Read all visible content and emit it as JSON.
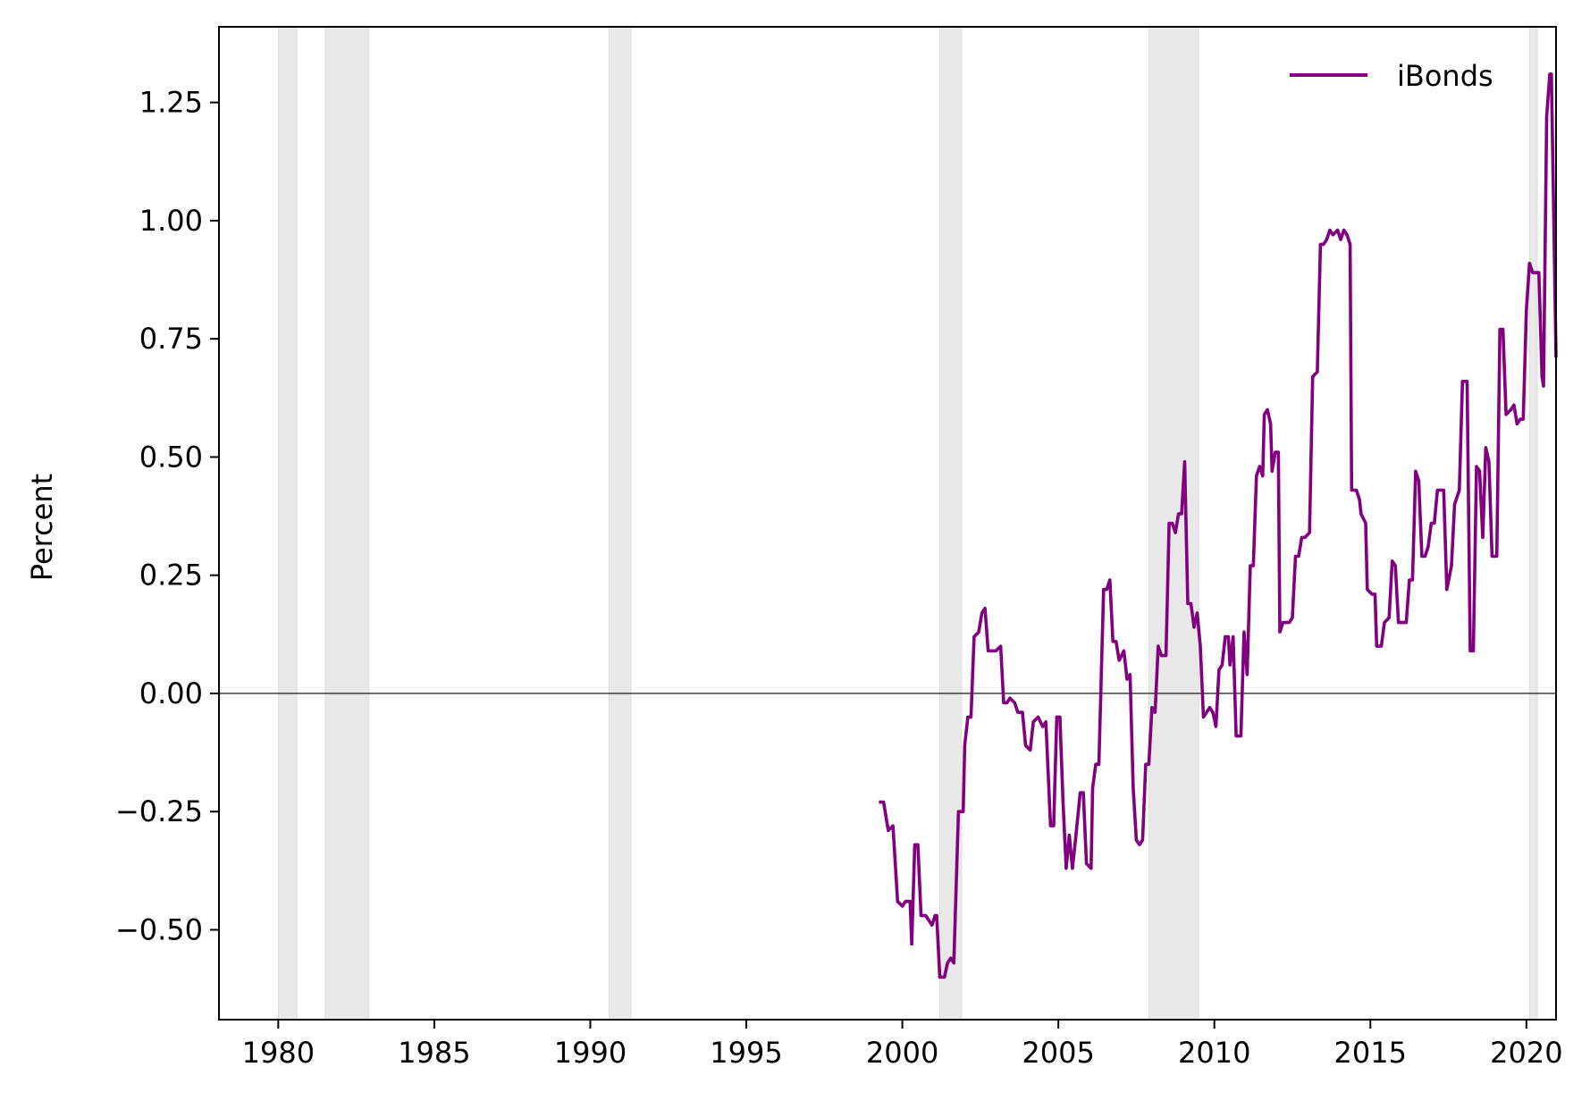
{
  "chart_data": {
    "type": "line",
    "title": "",
    "xlabel": "",
    "ylabel": "Percent",
    "xlim": [
      1978.1,
      2020.95
    ],
    "ylim": [
      -0.69,
      1.41
    ],
    "x_ticks": [
      1980,
      1985,
      1990,
      1995,
      2000,
      2005,
      2010,
      2015,
      2020
    ],
    "y_ticks": [
      {
        "value": -0.5,
        "label": "−0.50"
      },
      {
        "value": -0.25,
        "label": "−0.25"
      },
      {
        "value": 0.0,
        "label": "0.00"
      },
      {
        "value": 0.25,
        "label": "0.25"
      },
      {
        "value": 0.5,
        "label": "0.50"
      },
      {
        "value": 0.75,
        "label": "0.75"
      },
      {
        "value": 1.0,
        "label": "1.00"
      },
      {
        "value": 1.25,
        "label": "1.25"
      }
    ],
    "zero_line": true,
    "grid": false,
    "legend": {
      "position": "top-right"
    },
    "recession_shading": [
      [
        1980.0,
        1980.6
      ],
      [
        1981.5,
        1982.9
      ],
      [
        1990.6,
        1991.3
      ],
      [
        2001.2,
        2001.9
      ],
      [
        2007.9,
        2009.5
      ],
      [
        2020.1,
        2020.35
      ]
    ],
    "series": [
      {
        "name": "iBonds",
        "color": "#800080",
        "points": [
          [
            1999.25,
            -0.23
          ],
          [
            1999.4,
            -0.23
          ],
          [
            1999.55,
            -0.29
          ],
          [
            1999.7,
            -0.28
          ],
          [
            1999.85,
            -0.44
          ],
          [
            2000.0,
            -0.45
          ],
          [
            2000.1,
            -0.44
          ],
          [
            2000.25,
            -0.44
          ],
          [
            2000.3,
            -0.53
          ],
          [
            2000.4,
            -0.32
          ],
          [
            2000.5,
            -0.32
          ],
          [
            2000.6,
            -0.47
          ],
          [
            2000.75,
            -0.47
          ],
          [
            2000.85,
            -0.48
          ],
          [
            2000.95,
            -0.49
          ],
          [
            2001.05,
            -0.47
          ],
          [
            2001.1,
            -0.47
          ],
          [
            2001.2,
            -0.6
          ],
          [
            2001.35,
            -0.6
          ],
          [
            2001.45,
            -0.57
          ],
          [
            2001.55,
            -0.56
          ],
          [
            2001.65,
            -0.57
          ],
          [
            2001.8,
            -0.25
          ],
          [
            2001.95,
            -0.25
          ],
          [
            2002.0,
            -0.11
          ],
          [
            2002.1,
            -0.05
          ],
          [
            2002.2,
            -0.05
          ],
          [
            2002.3,
            0.12
          ],
          [
            2002.45,
            0.13
          ],
          [
            2002.55,
            0.17
          ],
          [
            2002.65,
            0.18
          ],
          [
            2002.75,
            0.09
          ],
          [
            2002.9,
            0.09
          ],
          [
            2003.0,
            0.09
          ],
          [
            2003.15,
            0.1
          ],
          [
            2003.25,
            -0.02
          ],
          [
            2003.35,
            -0.02
          ],
          [
            2003.45,
            -0.01
          ],
          [
            2003.6,
            -0.02
          ],
          [
            2003.7,
            -0.04
          ],
          [
            2003.85,
            -0.04
          ],
          [
            2003.95,
            -0.11
          ],
          [
            2004.1,
            -0.12
          ],
          [
            2004.2,
            -0.06
          ],
          [
            2004.35,
            -0.05
          ],
          [
            2004.5,
            -0.07
          ],
          [
            2004.6,
            -0.06
          ],
          [
            2004.75,
            -0.28
          ],
          [
            2004.85,
            -0.28
          ],
          [
            2004.95,
            -0.05
          ],
          [
            2005.05,
            -0.05
          ],
          [
            2005.15,
            -0.23
          ],
          [
            2005.25,
            -0.37
          ],
          [
            2005.35,
            -0.3
          ],
          [
            2005.45,
            -0.37
          ],
          [
            2005.55,
            -0.31
          ],
          [
            2005.7,
            -0.21
          ],
          [
            2005.8,
            -0.21
          ],
          [
            2005.9,
            -0.36
          ],
          [
            2006.05,
            -0.37
          ],
          [
            2006.1,
            -0.2
          ],
          [
            2006.2,
            -0.15
          ],
          [
            2006.3,
            -0.15
          ],
          [
            2006.45,
            0.22
          ],
          [
            2006.55,
            0.22
          ],
          [
            2006.65,
            0.24
          ],
          [
            2006.75,
            0.11
          ],
          [
            2006.85,
            0.11
          ],
          [
            2006.95,
            0.07
          ],
          [
            2007.1,
            0.09
          ],
          [
            2007.2,
            0.03
          ],
          [
            2007.3,
            0.04
          ],
          [
            2007.4,
            -0.2
          ],
          [
            2007.5,
            -0.31
          ],
          [
            2007.6,
            -0.32
          ],
          [
            2007.7,
            -0.31
          ],
          [
            2007.8,
            -0.15
          ],
          [
            2007.9,
            -0.15
          ],
          [
            2008.0,
            -0.03
          ],
          [
            2008.1,
            -0.04
          ],
          [
            2008.2,
            0.1
          ],
          [
            2008.3,
            0.08
          ],
          [
            2008.45,
            0.08
          ],
          [
            2008.55,
            0.36
          ],
          [
            2008.65,
            0.36
          ],
          [
            2008.75,
            0.34
          ],
          [
            2008.85,
            0.38
          ],
          [
            2008.95,
            0.38
          ],
          [
            2009.05,
            0.49
          ],
          [
            2009.15,
            0.19
          ],
          [
            2009.25,
            0.19
          ],
          [
            2009.35,
            0.14
          ],
          [
            2009.45,
            0.17
          ],
          [
            2009.55,
            0.1
          ],
          [
            2009.65,
            -0.05
          ],
          [
            2009.75,
            -0.04
          ],
          [
            2009.85,
            -0.03
          ],
          [
            2009.95,
            -0.04
          ],
          [
            2010.05,
            -0.07
          ],
          [
            2010.15,
            0.05
          ],
          [
            2010.25,
            0.06
          ],
          [
            2010.35,
            0.12
          ],
          [
            2010.45,
            0.12
          ],
          [
            2010.5,
            0.06
          ],
          [
            2010.6,
            0.12
          ],
          [
            2010.7,
            -0.09
          ],
          [
            2010.85,
            -0.09
          ],
          [
            2010.95,
            0.13
          ],
          [
            2011.05,
            0.04
          ],
          [
            2011.15,
            0.27
          ],
          [
            2011.25,
            0.27
          ],
          [
            2011.35,
            0.46
          ],
          [
            2011.45,
            0.48
          ],
          [
            2011.55,
            0.46
          ],
          [
            2011.6,
            0.59
          ],
          [
            2011.7,
            0.6
          ],
          [
            2011.8,
            0.57
          ],
          [
            2011.85,
            0.47
          ],
          [
            2011.95,
            0.51
          ],
          [
            2012.05,
            0.51
          ],
          [
            2012.1,
            0.13
          ],
          [
            2012.2,
            0.15
          ],
          [
            2012.3,
            0.15
          ],
          [
            2012.4,
            0.15
          ],
          [
            2012.5,
            0.16
          ],
          [
            2012.6,
            0.29
          ],
          [
            2012.7,
            0.29
          ],
          [
            2012.8,
            0.33
          ],
          [
            2012.9,
            0.33
          ],
          [
            2013.05,
            0.34
          ],
          [
            2013.15,
            0.67
          ],
          [
            2013.3,
            0.68
          ],
          [
            2013.4,
            0.95
          ],
          [
            2013.5,
            0.95
          ],
          [
            2013.6,
            0.96
          ],
          [
            2013.7,
            0.98
          ],
          [
            2013.8,
            0.97
          ],
          [
            2013.95,
            0.98
          ],
          [
            2014.05,
            0.96
          ],
          [
            2014.15,
            0.98
          ],
          [
            2014.25,
            0.97
          ],
          [
            2014.35,
            0.95
          ],
          [
            2014.4,
            0.43
          ],
          [
            2014.55,
            0.43
          ],
          [
            2014.65,
            0.41
          ],
          [
            2014.7,
            0.38
          ],
          [
            2014.85,
            0.36
          ],
          [
            2014.9,
            0.22
          ],
          [
            2015.05,
            0.21
          ],
          [
            2015.15,
            0.21
          ],
          [
            2015.2,
            0.1
          ],
          [
            2015.35,
            0.1
          ],
          [
            2015.45,
            0.15
          ],
          [
            2015.6,
            0.16
          ],
          [
            2015.7,
            0.28
          ],
          [
            2015.8,
            0.27
          ],
          [
            2015.9,
            0.15
          ],
          [
            2016.05,
            0.15
          ],
          [
            2016.15,
            0.15
          ],
          [
            2016.25,
            0.24
          ],
          [
            2016.35,
            0.24
          ],
          [
            2016.45,
            0.47
          ],
          [
            2016.55,
            0.45
          ],
          [
            2016.65,
            0.29
          ],
          [
            2016.75,
            0.29
          ],
          [
            2016.85,
            0.31
          ],
          [
            2016.95,
            0.36
          ],
          [
            2017.05,
            0.36
          ],
          [
            2017.15,
            0.43
          ],
          [
            2017.25,
            0.43
          ],
          [
            2017.35,
            0.43
          ],
          [
            2017.45,
            0.22
          ],
          [
            2017.6,
            0.27
          ],
          [
            2017.7,
            0.4
          ],
          [
            2017.85,
            0.43
          ],
          [
            2017.95,
            0.66
          ],
          [
            2018.1,
            0.66
          ],
          [
            2018.2,
            0.09
          ],
          [
            2018.3,
            0.09
          ],
          [
            2018.4,
            0.48
          ],
          [
            2018.5,
            0.47
          ],
          [
            2018.6,
            0.33
          ],
          [
            2018.7,
            0.52
          ],
          [
            2018.8,
            0.49
          ],
          [
            2018.9,
            0.29
          ],
          [
            2019.05,
            0.29
          ],
          [
            2019.15,
            0.77
          ],
          [
            2019.25,
            0.77
          ],
          [
            2019.35,
            0.59
          ],
          [
            2019.5,
            0.6
          ],
          [
            2019.6,
            0.61
          ],
          [
            2019.7,
            0.57
          ],
          [
            2019.8,
            0.58
          ],
          [
            2019.9,
            0.58
          ],
          [
            2020.0,
            0.81
          ],
          [
            2020.1,
            0.91
          ],
          [
            2020.2,
            0.89
          ],
          [
            2020.3,
            0.89
          ],
          [
            2020.4,
            0.89
          ],
          [
            2020.5,
            0.67
          ],
          [
            2020.55,
            0.65
          ],
          [
            2020.65,
            1.22
          ],
          [
            2020.75,
            1.31
          ],
          [
            2020.8,
            1.31
          ],
          [
            2020.95,
            0.71
          ]
        ]
      }
    ]
  }
}
